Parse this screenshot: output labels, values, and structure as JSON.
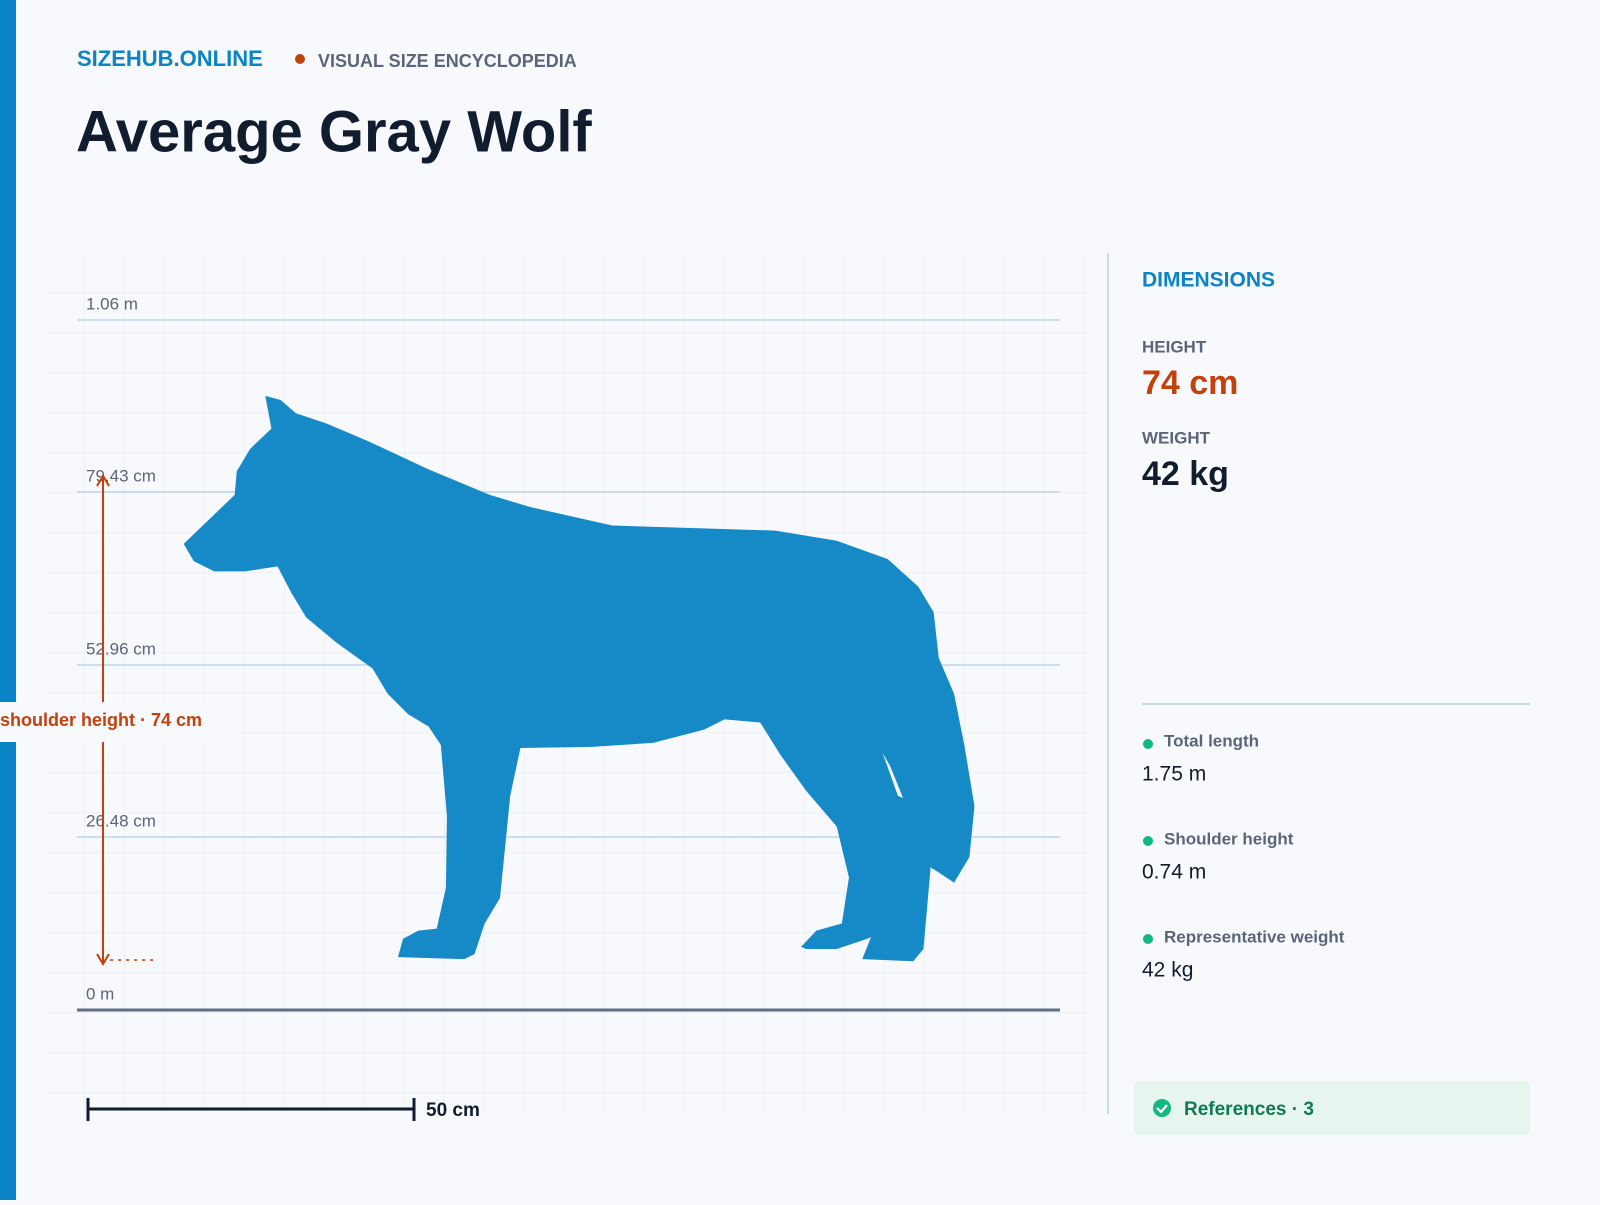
{
  "header": {
    "brand": "SIZEHUB.ONLINE",
    "tagline": "VISUAL SIZE ENCYCLOPEDIA",
    "title": "Average Gray Wolf"
  },
  "figure": {
    "ruler_labels": [
      "1.06 m",
      "79.43 cm",
      "52.96 cm",
      "26.48 cm",
      "0 m"
    ],
    "annotation": "shoulder height · 74 cm",
    "scale_bar": "50 cm"
  },
  "sidebar": {
    "heading": "DIMENSIONS",
    "stats": [
      {
        "label": "HEIGHT",
        "value": "74 cm"
      },
      {
        "label": "WEIGHT",
        "value": "42 kg"
      }
    ],
    "facts": [
      {
        "label": "Total length",
        "value": "1.75 m"
      },
      {
        "label": "Shoulder height",
        "value": "0.74 m"
      },
      {
        "label": "Representative weight",
        "value": "42 kg"
      }
    ],
    "references": "References · 3"
  }
}
